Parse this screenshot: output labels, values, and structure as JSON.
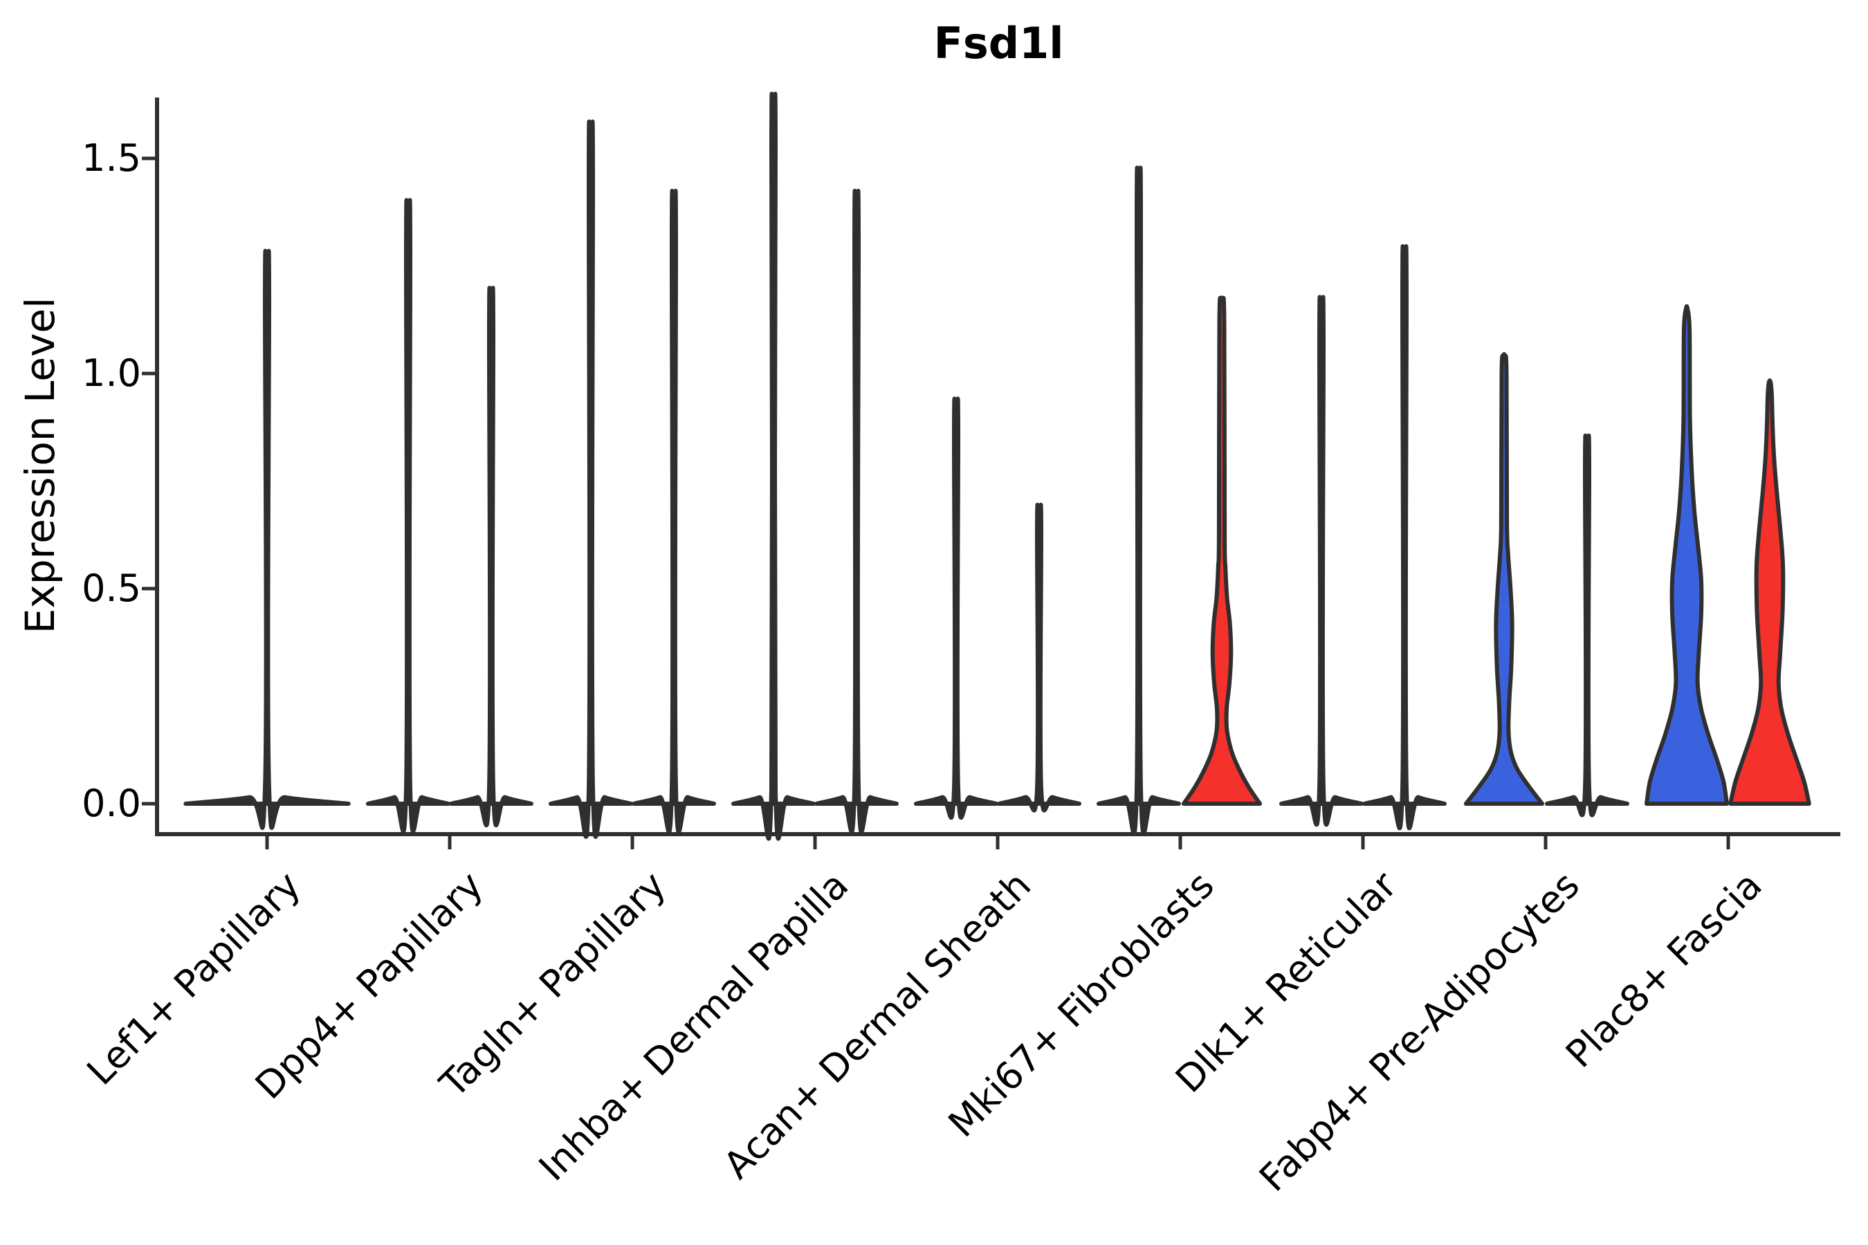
{
  "chart_data": {
    "type": "violin",
    "title": "Fsd1l",
    "xlabel": "",
    "ylabel": "Expression Level",
    "yticks": [
      0.0,
      0.5,
      1.0,
      1.5
    ],
    "ytick_labels": [
      "0.0",
      "0.5",
      "1.0",
      "1.5"
    ],
    "ylim": [
      -0.07,
      1.64
    ],
    "grid": false,
    "legend": "none",
    "background": "#ffffff",
    "colors": {
      "dark": "#2f2f2f",
      "blue": "#3b62de",
      "red": "#f4312a",
      "outline": "#2f2f2f",
      "point": "#2f2f2f"
    },
    "categories": [
      "Lef1+ Papillary",
      "Dpp4+ Papillary",
      "Tagln+ Papillary",
      "Inhba+ Dermal Papilla",
      "Acan+ Dermal Sheath",
      "Mki67+ Fibroblasts",
      "Dlk1+ Reticular",
      "Fabp4+ Pre-Adipocytes",
      "Plac8+ Fascia"
    ],
    "violins": [
      {
        "category": "Lef1+ Papillary",
        "cat_index": 0,
        "side": "center",
        "fill": "dark",
        "max": 1.22,
        "profile": [
          [
            0,
            2.03
          ],
          [
            0.015,
            0.45
          ],
          [
            0.035,
            0.052
          ],
          [
            1.19,
            0.052
          ],
          [
            1.22,
            0.02
          ]
        ]
      },
      {
        "category": "Dpp4+ Papillary",
        "cat_index": 1,
        "side": "left",
        "fill": "dark",
        "max": 1.33,
        "profile": [
          [
            0,
            1.0
          ],
          [
            0.015,
            0.35
          ],
          [
            0.035,
            0.052
          ],
          [
            1.3,
            0.052
          ],
          [
            1.33,
            0.02
          ]
        ]
      },
      {
        "category": "Dpp4+ Papillary",
        "cat_index": 1,
        "side": "right",
        "fill": "dark",
        "max": 1.14,
        "profile": [
          [
            0,
            1.0
          ],
          [
            0.015,
            0.35
          ],
          [
            0.035,
            0.052
          ],
          [
            1.11,
            0.052
          ],
          [
            1.14,
            0.02
          ]
        ]
      },
      {
        "category": "Tagln+ Papillary",
        "cat_index": 2,
        "side": "left",
        "fill": "dark",
        "max": 1.5,
        "profile": [
          [
            0,
            1.0
          ],
          [
            0.015,
            0.35
          ],
          [
            0.035,
            0.052
          ],
          [
            1.47,
            0.052
          ],
          [
            1.5,
            0.02
          ]
        ]
      },
      {
        "category": "Tagln+ Papillary",
        "cat_index": 2,
        "side": "right",
        "fill": "dark",
        "max": 1.35,
        "profile": [
          [
            0,
            1.0
          ],
          [
            0.015,
            0.35
          ],
          [
            0.035,
            0.052
          ],
          [
            1.32,
            0.052
          ],
          [
            1.35,
            0.02
          ]
        ]
      },
      {
        "category": "Inhba+ Dermal Papilla",
        "cat_index": 3,
        "side": "left",
        "fill": "dark",
        "max": 1.56,
        "profile": [
          [
            0,
            1.0
          ],
          [
            0.015,
            0.35
          ],
          [
            0.035,
            0.052
          ],
          [
            1.53,
            0.052
          ],
          [
            1.56,
            0.02
          ]
        ]
      },
      {
        "category": "Inhba+ Dermal Papilla",
        "cat_index": 3,
        "side": "right",
        "fill": "dark",
        "max": 1.35,
        "profile": [
          [
            0,
            1.0
          ],
          [
            0.015,
            0.35
          ],
          [
            0.035,
            0.052
          ],
          [
            1.32,
            0.052
          ],
          [
            1.35,
            0.02
          ]
        ]
      },
      {
        "category": "Acan+ Dermal Sheath",
        "cat_index": 4,
        "side": "left",
        "fill": "dark",
        "max": 0.9,
        "profile": [
          [
            0,
            1.0
          ],
          [
            0.015,
            0.35
          ],
          [
            0.035,
            0.052
          ],
          [
            0.87,
            0.052
          ],
          [
            0.9,
            0.02
          ]
        ]
      },
      {
        "category": "Acan+ Dermal Sheath",
        "cat_index": 4,
        "side": "right",
        "fill": "dark",
        "max": 0.67,
        "profile": [
          [
            0,
            1.0
          ],
          [
            0.015,
            0.35
          ],
          [
            0.035,
            0.052
          ],
          [
            0.64,
            0.052
          ],
          [
            0.67,
            0.02
          ]
        ]
      },
      {
        "category": "Mki67+ Fibroblasts",
        "cat_index": 5,
        "side": "left",
        "fill": "dark",
        "max": 1.4,
        "profile": [
          [
            0,
            1.0
          ],
          [
            0.015,
            0.35
          ],
          [
            0.035,
            0.052
          ],
          [
            1.37,
            0.052
          ],
          [
            1.4,
            0.02
          ]
        ]
      },
      {
        "category": "Mki67+ Fibroblasts",
        "cat_index": 5,
        "side": "right",
        "fill": "red",
        "max": 1.17,
        "profile": [
          [
            0,
            0.95
          ],
          [
            0.04,
            0.66
          ],
          [
            0.08,
            0.43
          ],
          [
            0.12,
            0.25
          ],
          [
            0.17,
            0.13
          ],
          [
            0.22,
            0.12
          ],
          [
            0.28,
            0.19
          ],
          [
            0.35,
            0.23
          ],
          [
            0.42,
            0.2
          ],
          [
            0.48,
            0.13
          ],
          [
            0.55,
            0.09
          ],
          [
            0.63,
            0.07
          ],
          [
            1.12,
            0.06
          ],
          [
            1.17,
            0.02
          ]
        ]
      },
      {
        "category": "Dlk1+ Reticular",
        "cat_index": 6,
        "side": "left",
        "fill": "dark",
        "max": 1.12,
        "profile": [
          [
            0,
            1.0
          ],
          [
            0.015,
            0.35
          ],
          [
            0.035,
            0.052
          ],
          [
            1.09,
            0.052
          ],
          [
            1.12,
            0.02
          ]
        ]
      },
      {
        "category": "Dlk1+ Reticular",
        "cat_index": 6,
        "side": "right",
        "fill": "dark",
        "max": 1.23,
        "profile": [
          [
            0,
            1.0
          ],
          [
            0.015,
            0.35
          ],
          [
            0.035,
            0.052
          ],
          [
            1.2,
            0.052
          ],
          [
            1.23,
            0.02
          ]
        ]
      },
      {
        "category": "Fabp4+ Pre-Adipocytes",
        "cat_index": 7,
        "side": "left",
        "fill": "blue",
        "max": 1.04,
        "profile": [
          [
            0,
            0.95
          ],
          [
            0.04,
            0.62
          ],
          [
            0.08,
            0.33
          ],
          [
            0.12,
            0.17
          ],
          [
            0.17,
            0.11
          ],
          [
            0.24,
            0.13
          ],
          [
            0.32,
            0.18
          ],
          [
            0.42,
            0.2
          ],
          [
            0.5,
            0.16
          ],
          [
            0.58,
            0.1
          ],
          [
            0.66,
            0.07
          ],
          [
            1.0,
            0.06
          ],
          [
            1.04,
            0.02
          ]
        ]
      },
      {
        "category": "Fabp4+ Pre-Adipocytes",
        "cat_index": 7,
        "side": "right",
        "fill": "dark",
        "max": 0.82,
        "profile": [
          [
            0,
            1.0
          ],
          [
            0.015,
            0.35
          ],
          [
            0.035,
            0.052
          ],
          [
            0.79,
            0.052
          ],
          [
            0.82,
            0.02
          ]
        ]
      },
      {
        "category": "Plac8+ Fascia",
        "cat_index": 8,
        "side": "left",
        "fill": "blue",
        "max": 1.15,
        "profile": [
          [
            0,
            1.0
          ],
          [
            0.05,
            0.92
          ],
          [
            0.1,
            0.76
          ],
          [
            0.16,
            0.54
          ],
          [
            0.22,
            0.36
          ],
          [
            0.28,
            0.27
          ],
          [
            0.35,
            0.3
          ],
          [
            0.44,
            0.36
          ],
          [
            0.52,
            0.36
          ],
          [
            0.6,
            0.28
          ],
          [
            0.68,
            0.19
          ],
          [
            0.78,
            0.12
          ],
          [
            0.9,
            0.08
          ],
          [
            1.1,
            0.07
          ],
          [
            1.15,
            0.02
          ]
        ]
      },
      {
        "category": "Plac8+ Fascia",
        "cat_index": 8,
        "side": "right",
        "fill": "red",
        "max": 0.98,
        "profile": [
          [
            0,
            0.98
          ],
          [
            0.05,
            0.86
          ],
          [
            0.1,
            0.68
          ],
          [
            0.16,
            0.46
          ],
          [
            0.22,
            0.29
          ],
          [
            0.28,
            0.22
          ],
          [
            0.35,
            0.26
          ],
          [
            0.45,
            0.32
          ],
          [
            0.55,
            0.33
          ],
          [
            0.63,
            0.27
          ],
          [
            0.72,
            0.18
          ],
          [
            0.8,
            0.11
          ],
          [
            0.88,
            0.07
          ],
          [
            0.95,
            0.05
          ],
          [
            0.98,
            0.02
          ]
        ]
      }
    ],
    "points": [
      {
        "category": "Acan+ Dermal Sheath",
        "cat_index": 4,
        "side": "left",
        "values": [
          0.49
        ]
      },
      {
        "category": "Fabp4+ Pre-Adipocytes",
        "cat_index": 7,
        "side": "right",
        "values": [
          0.59,
          0.55,
          0.4,
          0.36,
          0.31,
          0.23
        ]
      }
    ]
  }
}
